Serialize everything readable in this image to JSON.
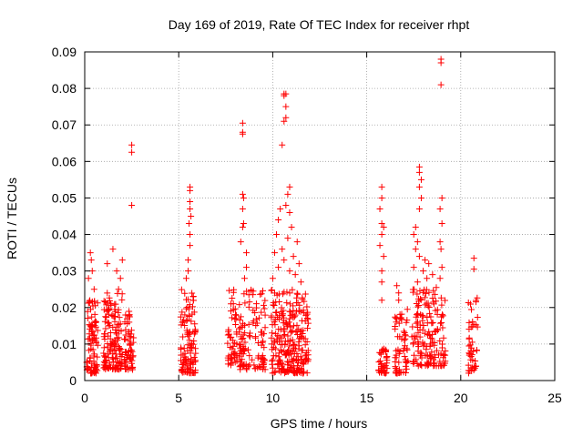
{
  "chart_data": {
    "type": "scatter",
    "title": "Day 169 of 2019, Rate Of TEC Index for receiver rhpt",
    "xlabel": "GPS time / hours",
    "ylabel": "ROTI / TECUs",
    "xlim": [
      0,
      25
    ],
    "ylim": [
      0,
      0.09
    ],
    "xticks": [
      0,
      5,
      10,
      15,
      20,
      25
    ],
    "xtick_labels": [
      "0",
      "5",
      "10",
      "15",
      "20",
      "25"
    ],
    "yticks": [
      0,
      0.01,
      0.02,
      0.03,
      0.04,
      0.05,
      0.06,
      0.07,
      0.08,
      0.09
    ],
    "ytick_labels": [
      "0",
      "0.01",
      "0.02",
      "0.03",
      "0.04",
      "0.05",
      "0.06",
      "0.07",
      "0.08",
      "0.09"
    ],
    "grid": true,
    "marker": "+",
    "color": "#ff0000",
    "clusters": [
      {
        "x_range": [
          0.1,
          0.7
        ],
        "y_range": [
          0.002,
          0.022
        ],
        "count": 90
      },
      {
        "x_range": [
          1.0,
          2.0
        ],
        "y_range": [
          0.003,
          0.024
        ],
        "count": 140
      },
      {
        "x_range": [
          2.1,
          2.6
        ],
        "y_range": [
          0.003,
          0.019
        ],
        "count": 60
      },
      {
        "x_range": [
          5.1,
          5.9
        ],
        "y_range": [
          0.002,
          0.025
        ],
        "count": 110
      },
      {
        "x_range": [
          7.6,
          8.1
        ],
        "y_range": [
          0.004,
          0.025
        ],
        "count": 50
      },
      {
        "x_range": [
          8.2,
          9.6
        ],
        "y_range": [
          0.003,
          0.025
        ],
        "count": 120
      },
      {
        "x_range": [
          9.9,
          11.9
        ],
        "y_range": [
          0.002,
          0.025
        ],
        "count": 260
      },
      {
        "x_range": [
          15.6,
          16.1
        ],
        "y_range": [
          0.002,
          0.009
        ],
        "count": 40
      },
      {
        "x_range": [
          16.5,
          17.2
        ],
        "y_range": [
          0.002,
          0.02
        ],
        "count": 60
      },
      {
        "x_range": [
          17.4,
          19.2
        ],
        "y_range": [
          0.004,
          0.025
        ],
        "count": 160
      },
      {
        "x_range": [
          20.4,
          20.9
        ],
        "y_range": [
          0.002,
          0.023
        ],
        "count": 45
      }
    ],
    "points": [
      {
        "x": 0.2,
        "y": 0.028
      },
      {
        "x": 0.3,
        "y": 0.035
      },
      {
        "x": 0.35,
        "y": 0.033
      },
      {
        "x": 0.4,
        "y": 0.03
      },
      {
        "x": 0.5,
        "y": 0.025
      },
      {
        "x": 1.5,
        "y": 0.036
      },
      {
        "x": 1.7,
        "y": 0.03
      },
      {
        "x": 1.9,
        "y": 0.028
      },
      {
        "x": 1.2,
        "y": 0.032
      },
      {
        "x": 2.0,
        "y": 0.033
      },
      {
        "x": 1.8,
        "y": 0.025
      },
      {
        "x": 2.5,
        "y": 0.0645
      },
      {
        "x": 2.5,
        "y": 0.0625
      },
      {
        "x": 2.5,
        "y": 0.048
      },
      {
        "x": 5.6,
        "y": 0.053
      },
      {
        "x": 5.6,
        "y": 0.052
      },
      {
        "x": 5.6,
        "y": 0.049
      },
      {
        "x": 5.6,
        "y": 0.047
      },
      {
        "x": 5.65,
        "y": 0.045
      },
      {
        "x": 5.55,
        "y": 0.043
      },
      {
        "x": 5.6,
        "y": 0.04
      },
      {
        "x": 5.6,
        "y": 0.037
      },
      {
        "x": 5.5,
        "y": 0.033
      },
      {
        "x": 5.5,
        "y": 0.03
      },
      {
        "x": 5.4,
        "y": 0.028
      },
      {
        "x": 8.4,
        "y": 0.0705
      },
      {
        "x": 8.4,
        "y": 0.068
      },
      {
        "x": 8.4,
        "y": 0.0675
      },
      {
        "x": 8.4,
        "y": 0.051
      },
      {
        "x": 8.45,
        "y": 0.05
      },
      {
        "x": 8.4,
        "y": 0.047
      },
      {
        "x": 8.45,
        "y": 0.043
      },
      {
        "x": 8.4,
        "y": 0.042
      },
      {
        "x": 8.3,
        "y": 0.038
      },
      {
        "x": 8.6,
        "y": 0.035
      },
      {
        "x": 8.6,
        "y": 0.031
      },
      {
        "x": 8.5,
        "y": 0.028
      },
      {
        "x": 10.6,
        "y": 0.0785
      },
      {
        "x": 10.7,
        "y": 0.0785
      },
      {
        "x": 10.6,
        "y": 0.078
      },
      {
        "x": 10.7,
        "y": 0.075
      },
      {
        "x": 10.7,
        "y": 0.072
      },
      {
        "x": 10.6,
        "y": 0.071
      },
      {
        "x": 10.5,
        "y": 0.0645
      },
      {
        "x": 10.9,
        "y": 0.053
      },
      {
        "x": 10.8,
        "y": 0.051
      },
      {
        "x": 10.7,
        "y": 0.048
      },
      {
        "x": 10.4,
        "y": 0.047
      },
      {
        "x": 10.9,
        "y": 0.046
      },
      {
        "x": 10.3,
        "y": 0.044
      },
      {
        "x": 11.0,
        "y": 0.042
      },
      {
        "x": 10.2,
        "y": 0.04
      },
      {
        "x": 10.8,
        "y": 0.039
      },
      {
        "x": 11.3,
        "y": 0.038
      },
      {
        "x": 10.5,
        "y": 0.036
      },
      {
        "x": 10.1,
        "y": 0.035
      },
      {
        "x": 11.1,
        "y": 0.034
      },
      {
        "x": 10.6,
        "y": 0.033
      },
      {
        "x": 11.4,
        "y": 0.032
      },
      {
        "x": 10.3,
        "y": 0.031
      },
      {
        "x": 10.9,
        "y": 0.03
      },
      {
        "x": 11.2,
        "y": 0.029
      },
      {
        "x": 10.0,
        "y": 0.028
      },
      {
        "x": 11.5,
        "y": 0.027
      },
      {
        "x": 15.8,
        "y": 0.053
      },
      {
        "x": 15.8,
        "y": 0.05
      },
      {
        "x": 15.7,
        "y": 0.047
      },
      {
        "x": 15.8,
        "y": 0.043
      },
      {
        "x": 15.9,
        "y": 0.042
      },
      {
        "x": 15.8,
        "y": 0.04
      },
      {
        "x": 15.7,
        "y": 0.037
      },
      {
        "x": 15.9,
        "y": 0.034
      },
      {
        "x": 15.8,
        "y": 0.03
      },
      {
        "x": 15.8,
        "y": 0.027
      },
      {
        "x": 15.8,
        "y": 0.022
      },
      {
        "x": 16.6,
        "y": 0.026
      },
      {
        "x": 16.7,
        "y": 0.024
      },
      {
        "x": 16.7,
        "y": 0.022
      },
      {
        "x": 17.8,
        "y": 0.0585
      },
      {
        "x": 17.8,
        "y": 0.057
      },
      {
        "x": 17.9,
        "y": 0.055
      },
      {
        "x": 17.8,
        "y": 0.053
      },
      {
        "x": 17.9,
        "y": 0.05
      },
      {
        "x": 17.8,
        "y": 0.047
      },
      {
        "x": 17.6,
        "y": 0.042
      },
      {
        "x": 17.5,
        "y": 0.04
      },
      {
        "x": 17.7,
        "y": 0.038
      },
      {
        "x": 17.6,
        "y": 0.036
      },
      {
        "x": 17.8,
        "y": 0.034
      },
      {
        "x": 18.1,
        "y": 0.033
      },
      {
        "x": 18.3,
        "y": 0.032
      },
      {
        "x": 17.5,
        "y": 0.031
      },
      {
        "x": 18.0,
        "y": 0.03
      },
      {
        "x": 18.5,
        "y": 0.029
      },
      {
        "x": 18.2,
        "y": 0.028
      },
      {
        "x": 17.7,
        "y": 0.027
      },
      {
        "x": 18.7,
        "y": 0.0255
      },
      {
        "x": 18.95,
        "y": 0.088
      },
      {
        "x": 18.95,
        "y": 0.087
      },
      {
        "x": 18.95,
        "y": 0.081
      },
      {
        "x": 19.0,
        "y": 0.05
      },
      {
        "x": 18.9,
        "y": 0.047
      },
      {
        "x": 19.0,
        "y": 0.043
      },
      {
        "x": 18.9,
        "y": 0.038
      },
      {
        "x": 18.95,
        "y": 0.036
      },
      {
        "x": 19.0,
        "y": 0.031
      },
      {
        "x": 18.9,
        "y": 0.028
      },
      {
        "x": 20.7,
        "y": 0.0335
      },
      {
        "x": 20.7,
        "y": 0.0305
      }
    ]
  }
}
